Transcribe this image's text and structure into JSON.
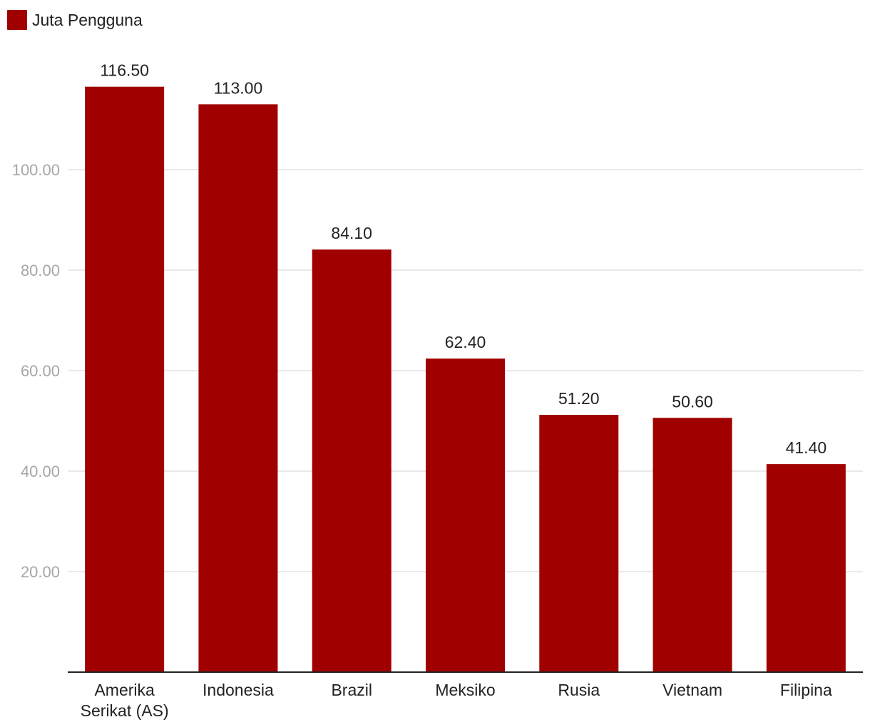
{
  "chart_data": {
    "type": "bar",
    "categories": [
      [
        "Amerika",
        "Serikat (AS)"
      ],
      [
        "Indonesia"
      ],
      [
        "Brazil"
      ],
      [
        "Meksiko"
      ],
      [
        "Rusia"
      ],
      [
        "Vietnam"
      ],
      [
        "Filipina"
      ]
    ],
    "series": [
      {
        "name": "Juta Pengguna",
        "color": "#a00000",
        "values": [
          116.5,
          113.0,
          84.1,
          62.4,
          51.2,
          50.6,
          41.4
        ],
        "value_labels": [
          "116.50",
          "113.00",
          "84.10",
          "62.40",
          "51.20",
          "50.60",
          "41.40"
        ]
      }
    ],
    "yticks": [
      20,
      40,
      60,
      80,
      100
    ],
    "ytick_labels": [
      "20.00",
      "40.00",
      "60.00",
      "80.00",
      "100.00"
    ],
    "ylim": [
      0,
      120
    ],
    "grid": true,
    "legend_position": "top-left"
  }
}
